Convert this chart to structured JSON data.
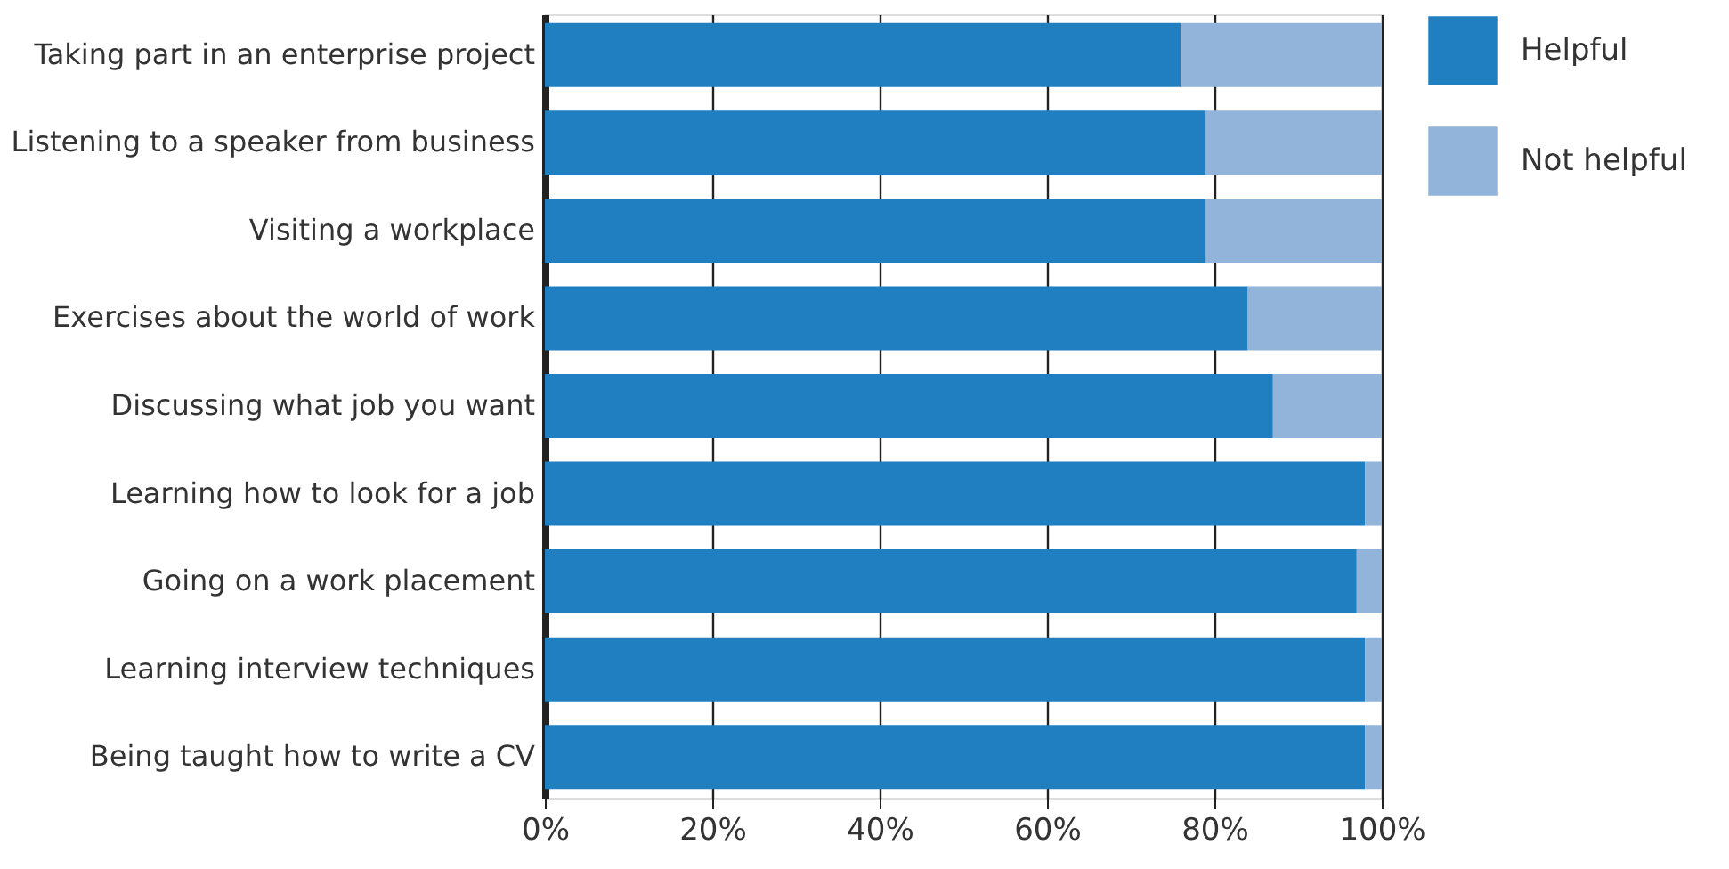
{
  "chart_data": {
    "type": "bar",
    "orientation": "horizontal",
    "stacked": true,
    "categories": [
      "Taking part in an enterprise project",
      "Listening to a speaker from business",
      "Visiting a workplace",
      "Exercises about the world of work",
      "Discussing what job you want",
      "Learning how to look for a job",
      "Going on a work placement",
      "Learning interview techniques",
      "Being taught how to write a CV"
    ],
    "series": [
      {
        "name": "Helpful",
        "color": "#1f7fc0",
        "values": [
          76,
          79,
          79,
          84,
          87,
          98,
          97,
          98,
          98
        ]
      },
      {
        "name": "Not helpful",
        "color": "#92b3da",
        "values": [
          24,
          21,
          21,
          16,
          13,
          2,
          3,
          2,
          2
        ]
      }
    ],
    "xlim": [
      0,
      100
    ],
    "xticks": [
      {
        "value": 0,
        "label": "0%"
      },
      {
        "value": 20,
        "label": "20%"
      },
      {
        "value": 40,
        "label": "40%"
      },
      {
        "value": 60,
        "label": "60%"
      },
      {
        "value": 80,
        "label": "80%"
      },
      {
        "value": 100,
        "label": "100%"
      }
    ],
    "grid": "x",
    "legend": "top right"
  }
}
